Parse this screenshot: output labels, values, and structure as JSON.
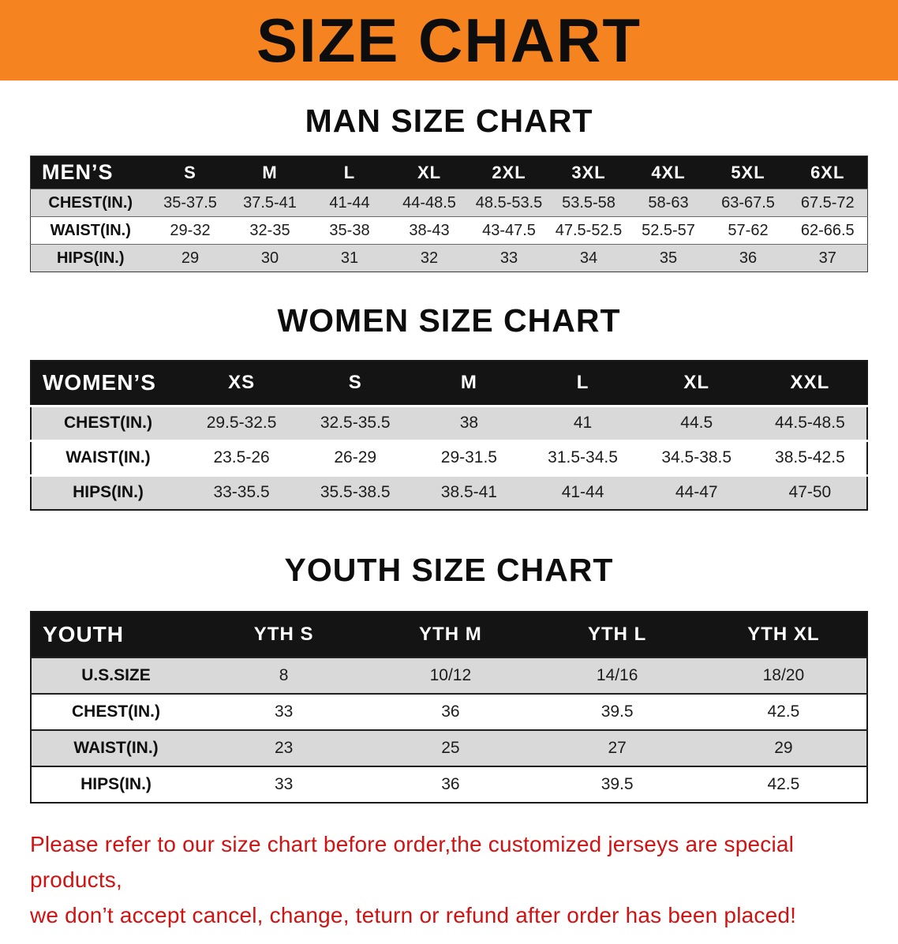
{
  "banner": {
    "title": "SIZE CHART",
    "bg_color": "#F5831F",
    "text_color": "#0D0D0D"
  },
  "sections": [
    {
      "heading": "MAN SIZE CHART",
      "table": {
        "header": [
          "MEN’S",
          "S",
          "M",
          "L",
          "XL",
          "2XL",
          "3XL",
          "4XL",
          "5XL",
          "6XL"
        ],
        "rows": [
          [
            "CHEST(IN.)",
            "35-37.5",
            "37.5-41",
            "41-44",
            "44-48.5",
            "48.5-53.5",
            "53.5-58",
            "58-63",
            "63-67.5",
            "67.5-72"
          ],
          [
            "WAIST(IN.)",
            "29-32",
            "32-35",
            "35-38",
            "38-43",
            "43-47.5",
            "47.5-52.5",
            "52.5-57",
            "57-62",
            "62-66.5"
          ],
          [
            "HIPS(IN.)",
            "29",
            "30",
            "31",
            "32",
            "33",
            "34",
            "35",
            "36",
            "37"
          ]
        ]
      }
    },
    {
      "heading": "WOMEN SIZE CHART",
      "table": {
        "header": [
          "WOMEN’S",
          "XS",
          "S",
          "M",
          "L",
          "XL",
          "XXL"
        ],
        "rows": [
          [
            "CHEST(IN.)",
            "29.5-32.5",
            "32.5-35.5",
            "38",
            "41",
            "44.5",
            "44.5-48.5"
          ],
          [
            "WAIST(IN.)",
            "23.5-26",
            "26-29",
            "29-31.5",
            "31.5-34.5",
            "34.5-38.5",
            "38.5-42.5"
          ],
          [
            "HIPS(IN.)",
            "33-35.5",
            "35.5-38.5",
            "38.5-41",
            "41-44",
            "44-47",
            "47-50"
          ]
        ]
      }
    },
    {
      "heading": "YOUTH SIZE CHART",
      "table": {
        "header": [
          "YOUTH",
          "YTH S",
          "YTH M",
          "YTH L",
          "YTH XL"
        ],
        "rows": [
          [
            "U.S.SIZE",
            "8",
            "10/12",
            "14/16",
            "18/20"
          ],
          [
            "CHEST(IN.)",
            "33",
            "36",
            "39.5",
            "42.5"
          ],
          [
            "WAIST(IN.)",
            "23",
            "25",
            "27",
            "29"
          ],
          [
            "HIPS(IN.)",
            "33",
            "36",
            "39.5",
            "42.5"
          ]
        ]
      }
    }
  ],
  "disclaimer": {
    "color": "#D01212",
    "lines": [
      "Please refer to our size chart before order,the customized jerseys are special products,",
      "we don’t accept cancel, change, teturn or refund after order has been placed!"
    ]
  }
}
